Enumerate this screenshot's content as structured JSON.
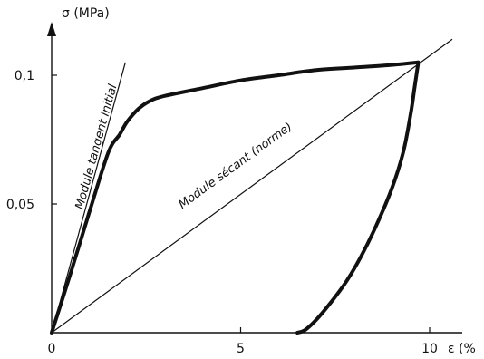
{
  "chart_data": {
    "type": "line",
    "title": "",
    "xlabel": "ε (%",
    "ylabel": "σ (MPa)",
    "xlim": [
      0,
      10
    ],
    "ylim": [
      0,
      0.11
    ],
    "x_ticks": [
      {
        "value": 0,
        "label": "0"
      },
      {
        "value": 5,
        "label": "5"
      },
      {
        "value": 10,
        "label": "10"
      }
    ],
    "y_ticks": [
      {
        "value": 0.05,
        "label": "0,05"
      },
      {
        "value": 0.1,
        "label": "0,1"
      }
    ],
    "origin_label": "0",
    "grid": false,
    "series": [
      {
        "role": "loading",
        "x": [
          0,
          0.5,
          1.0,
          1.5,
          1.8,
          2.0,
          2.3,
          2.6,
          3.0,
          4.0,
          5.0,
          6.0,
          7.0,
          8.0,
          9.0,
          9.7
        ],
        "y": [
          0,
          0.023,
          0.047,
          0.07,
          0.077,
          0.082,
          0.087,
          0.09,
          0.092,
          0.095,
          0.098,
          0.1,
          0.102,
          0.103,
          0.104,
          0.105
        ]
      },
      {
        "role": "unloading",
        "x": [
          9.7,
          9.6,
          9.5,
          9.3,
          9.0,
          8.6,
          8.2,
          7.8,
          7.4,
          7.0,
          6.7,
          6.5
        ],
        "y": [
          0.105,
          0.095,
          0.085,
          0.07,
          0.056,
          0.042,
          0.03,
          0.02,
          0.012,
          0.005,
          0.001,
          0
        ]
      }
    ],
    "reference_lines": [
      {
        "name": "Module tangent initial",
        "x": [
          0,
          1.95
        ],
        "y": [
          0,
          0.105
        ]
      },
      {
        "name": "Module sécant (norme)",
        "x": [
          0,
          10.6
        ],
        "y": [
          0,
          0.114
        ]
      }
    ],
    "annotations": [
      {
        "text": "Module tangent initial",
        "refers_to": "Module tangent initial"
      },
      {
        "text": "Module sécant (norme)",
        "refers_to": "Module sécant (norme)"
      }
    ],
    "colors": {
      "curve": "#111111",
      "axis": "#111111",
      "background": "#ffffff"
    }
  }
}
